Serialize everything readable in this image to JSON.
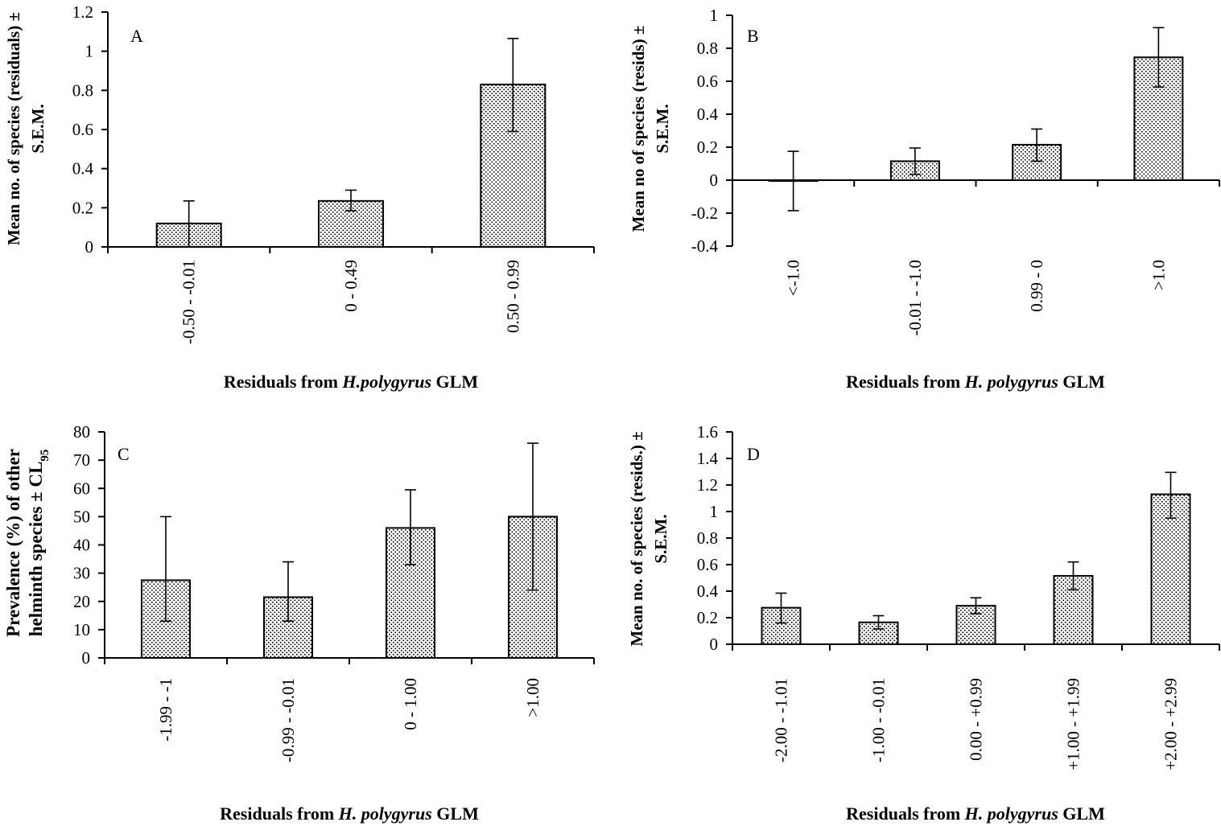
{
  "chart_data": [
    {
      "panel": "A",
      "type": "bar",
      "categories": [
        "-0.50 - -0.01",
        "0 - 0.49",
        "0.50 - 0.99"
      ],
      "values": [
        0.12,
        0.235,
        0.83
      ],
      "errors": [
        [
          0.0,
          0.235
        ],
        [
          0.185,
          0.29
        ],
        [
          0.59,
          1.065
        ]
      ],
      "ylim": [
        0,
        1.2
      ],
      "yticks": [
        "0",
        "0.2",
        "0.4",
        "0.6",
        "0.8",
        "1",
        "1.2"
      ],
      "ylabel_lines": [
        "Mean no. of species (residuals) ±",
        "S.E.M."
      ],
      "xlabel_parts": [
        "Residuals from ",
        "H.polygyrus",
        " GLM"
      ]
    },
    {
      "panel": "B",
      "type": "bar",
      "categories": [
        "<-1.0",
        "-0.01 - -1.0",
        "0.99 - 0",
        ">1.0"
      ],
      "values": [
        -0.005,
        0.115,
        0.215,
        0.745
      ],
      "errors": [
        [
          -0.185,
          0.175
        ],
        [
          0.035,
          0.195
        ],
        [
          0.115,
          0.31
        ],
        [
          0.565,
          0.925
        ]
      ],
      "ylim": [
        -0.4,
        1
      ],
      "yticks": [
        "-0.4",
        "-0.2",
        "0",
        "0.2",
        "0.4",
        "0.6",
        "0.8",
        "1"
      ],
      "ylabel_lines": [
        "Mean no of species (resids) ±",
        "S.E.M."
      ],
      "xlabel_parts": [
        "Residuals from ",
        "H. polygyrus",
        " GLM"
      ]
    },
    {
      "panel": "C",
      "type": "bar",
      "categories": [
        "-1.99 - -1",
        "-0.99 - -0.01",
        "0 - 1.00",
        ">1.00"
      ],
      "values": [
        27.5,
        21.5,
        46,
        50
      ],
      "errors": [
        [
          13,
          50
        ],
        [
          13,
          34
        ],
        [
          33,
          59.5
        ],
        [
          24,
          76
        ]
      ],
      "ylim": [
        0,
        80
      ],
      "yticks": [
        "0",
        "10",
        "20",
        "30",
        "40",
        "50",
        "60",
        "70",
        "80"
      ],
      "ylabel_lines": [
        "Prevalence (%) of other",
        "helminth species ± CL"
      ],
      "ylabel_subscript": "95",
      "xlabel_parts": [
        "Residuals from ",
        "H. polygyrus",
        " GLM"
      ]
    },
    {
      "panel": "D",
      "type": "bar",
      "categories": [
        "-2.00 - -1.01",
        "-1.00 - -0.01",
        "0.00 - +0.99",
        "+1.00 - +1.99",
        "+2.00 - +2.99"
      ],
      "values": [
        0.275,
        0.165,
        0.29,
        0.515,
        1.13
      ],
      "errors": [
        [
          0.16,
          0.385
        ],
        [
          0.115,
          0.215
        ],
        [
          0.23,
          0.35
        ],
        [
          0.41,
          0.62
        ],
        [
          0.95,
          1.295
        ]
      ],
      "ylim": [
        0,
        1.6
      ],
      "yticks": [
        "0",
        "0.2",
        "0.4",
        "0.6",
        "0.8",
        "1",
        "1.2",
        "1.4",
        "1.6"
      ],
      "ylabel_lines": [
        "Mean no. of species (resids.) ±",
        "S.E.M."
      ],
      "xlabel_parts": [
        "Residuals from ",
        "H. polygyrus",
        " GLM"
      ]
    }
  ]
}
